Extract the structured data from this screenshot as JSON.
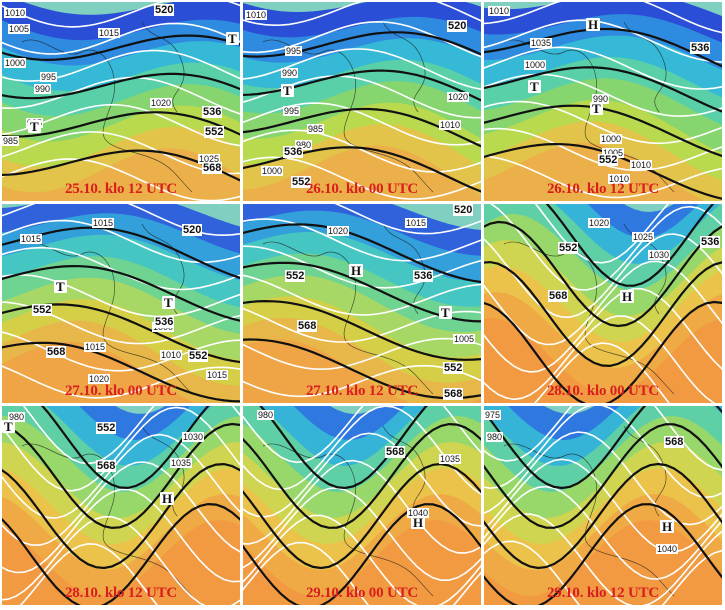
{
  "panels": [
    {
      "caption": "25.10. klo 12 UTC",
      "palette": "cold-north",
      "isobars": [
        "1010",
        "1005",
        "1015",
        "1000",
        "995",
        "990",
        "1020",
        "985",
        "1025",
        "985"
      ],
      "geopotential": [
        "520",
        "536",
        "552",
        "568"
      ],
      "symbols": [
        "T",
        "T"
      ]
    },
    {
      "caption": "26.10. klo 00 UTC",
      "palette": "cold-north",
      "isobars": [
        "1010",
        "995",
        "990",
        "995",
        "985",
        "980",
        "1000",
        "1020",
        "1010"
      ],
      "geopotential": [
        "520",
        "536",
        "552"
      ],
      "symbols": [
        "T"
      ]
    },
    {
      "caption": "26.10. klo 12 UTC",
      "palette": "cold-north",
      "isobars": [
        "1010",
        "1035",
        "1000",
        "990",
        "1000",
        "1005",
        "1010",
        "1010"
      ],
      "geopotential": [
        "536",
        "552"
      ],
      "symbols": [
        "H",
        "T",
        "T"
      ]
    },
    {
      "caption": "27.10. klo 00 UTC",
      "palette": "mid",
      "isobars": [
        "1015",
        "1015",
        "1000",
        "1015",
        "1010",
        "1020",
        "1015"
      ],
      "geopotential": [
        "520",
        "552",
        "536",
        "568",
        "552"
      ],
      "symbols": [
        "T",
        "T"
      ]
    },
    {
      "caption": "27.10. klo 12 UTC",
      "palette": "mid",
      "isobars": [
        "1020",
        "1015",
        "1005"
      ],
      "geopotential": [
        "520",
        "552",
        "536",
        "568",
        "552",
        "568"
      ],
      "symbols": [
        "H",
        "T"
      ]
    },
    {
      "caption": "28.10. klo 00 UTC",
      "palette": "warm-ridge",
      "isobars": [
        "1020",
        "1025",
        "1030"
      ],
      "geopotential": [
        "552",
        "536",
        "568"
      ],
      "symbols": [
        "H"
      ]
    },
    {
      "caption": "28.10. klo 12 UTC",
      "palette": "warm-ridge",
      "isobars": [
        "980",
        "1030",
        "1035"
      ],
      "geopotential": [
        "552",
        "568"
      ],
      "symbols": [
        "T",
        "H"
      ]
    },
    {
      "caption": "29.10. klo 00 UTC",
      "palette": "warm-ridge",
      "isobars": [
        "980",
        "1035",
        "1040"
      ],
      "geopotential": [
        "568"
      ],
      "symbols": [
        "H"
      ]
    },
    {
      "caption": "29.10. klo 12 UTC",
      "palette": "warm-ridge",
      "isobars": [
        "980",
        "975",
        "1040"
      ],
      "geopotential": [
        "568"
      ],
      "symbols": [
        "H"
      ]
    }
  ]
}
